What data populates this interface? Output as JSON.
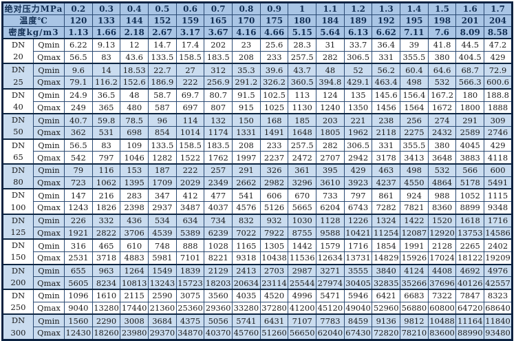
{
  "labels": {
    "dn": "DN",
    "qmin": "Qmin",
    "qmax": "Qmax"
  },
  "header_rows": [
    {
      "label": "绝对压力MPa",
      "values": [
        "0.2",
        "0.3",
        "0.4",
        "0.5",
        "0.6",
        "0.7",
        "0.8",
        "0.9",
        "1",
        "1.1",
        "1.2",
        "1.3",
        "1.4",
        "1.5",
        "1.6",
        "1.7"
      ]
    },
    {
      "label": "温度℃",
      "values": [
        "120",
        "133",
        "144",
        "152",
        "159",
        "165",
        "170",
        "175",
        "180",
        "184",
        "189",
        "192",
        "195",
        "198",
        "201",
        "204"
      ]
    },
    {
      "label": "密度kg/m3",
      "values": [
        "1.13",
        "1.66",
        "2.18",
        "2.67",
        "3.17",
        "3.67",
        "4.16",
        "4.66",
        "5.15",
        "5.64",
        "6.13",
        "6.62",
        "7.11",
        "7.6",
        "8.09",
        "8.58"
      ]
    }
  ],
  "row_groups": [
    {
      "dn": "20",
      "shaded": false,
      "qmin": [
        "6.22",
        "9.13",
        "12",
        "14.7",
        "17.4",
        "202",
        "23",
        "25.6",
        "28.3",
        "31",
        "33.7",
        "36.4",
        "39",
        "41.8",
        "44.5",
        "47.2"
      ],
      "qmax": [
        "56.5",
        "83",
        "43.6",
        "133.5",
        "158.5",
        "183.5",
        "208",
        "233",
        "257.5",
        "282",
        "306.5",
        "331",
        "355.5",
        "380",
        "404.5",
        "429"
      ]
    },
    {
      "dn": "25",
      "shaded": true,
      "qmin": [
        "9.6",
        "14",
        "18.53",
        "22.7",
        "27",
        "312",
        "35.3",
        "39.6",
        "43.7",
        "48",
        "52",
        "56.2",
        "60.4",
        "64.6",
        "68.7",
        "72.9"
      ],
      "qmax": [
        "79.1",
        "116.2",
        "152.6",
        "186.9",
        "222",
        "256.9",
        "291.2",
        "326.2",
        "360.5",
        "394.8",
        "429.1",
        "463.4",
        "498",
        "532",
        "566.3",
        "600.6"
      ]
    },
    {
      "dn": "40",
      "shaded": false,
      "qmin": [
        "24.9",
        "36.5",
        "48",
        "58.7",
        "69.7",
        "80.7",
        "91.5",
        "102.5",
        "113",
        "124",
        "135",
        "145.6",
        "156.4",
        "167.2",
        "180",
        "188.8"
      ],
      "qmax": [
        "249",
        "365",
        "480",
        "587",
        "697",
        "807",
        "915",
        "1025",
        "1130",
        "1240",
        "1350",
        "1456",
        "1564",
        "1672",
        "1800",
        "1888"
      ]
    },
    {
      "dn": "50",
      "shaded": true,
      "qmin": [
        "40.7",
        "59.8",
        "78.5",
        "96",
        "114",
        "132",
        "150",
        "168",
        "185",
        "203",
        "221",
        "238",
        "256",
        "274",
        "291",
        "309"
      ],
      "qmax": [
        "362",
        "531",
        "698",
        "854",
        "1014",
        "1174",
        "1331",
        "1491",
        "1648",
        "1805",
        "1962",
        "2118",
        "2275",
        "2432",
        "2589",
        "2746"
      ]
    },
    {
      "dn": "65",
      "shaded": false,
      "qmin": [
        "56.5",
        "83",
        "109",
        "133.5",
        "158.5",
        "183.5",
        "208",
        "233",
        "257.5",
        "282",
        "306.5",
        "331",
        "355.5",
        "380",
        "4045",
        "429"
      ],
      "qmax": [
        "542",
        "797",
        "1046",
        "1282",
        "1522",
        "1762",
        "1997",
        "2237",
        "2472",
        "2707",
        "2942",
        "3178",
        "3413",
        "3648",
        "3883",
        "4118"
      ]
    },
    {
      "dn": "80",
      "shaded": true,
      "qmin": [
        "79",
        "116",
        "153",
        "187",
        "222",
        "257",
        "291",
        "326",
        "361",
        "395",
        "429",
        "463",
        "498",
        "532",
        "566",
        "600"
      ],
      "qmax": [
        "723",
        "1062",
        "1395",
        "1709",
        "2029",
        "2349",
        "2662",
        "2982",
        "3296",
        "3610",
        "3923",
        "4237",
        "4550",
        "4864",
        "5178",
        "5491"
      ]
    },
    {
      "dn": "100",
      "shaded": false,
      "qmin": [
        "147",
        "216",
        "283",
        "347",
        "412",
        "477",
        "541",
        "606",
        "670",
        "733",
        "797",
        "861",
        "924",
        "988",
        "1052",
        "1115"
      ],
      "qmax": [
        "1243",
        "1826",
        "2398",
        "2937",
        "3487",
        "4037",
        "4576",
        "5126",
        "5665",
        "6204",
        "6743",
        "7282",
        "7821",
        "8360",
        "8899",
        "9348"
      ]
    },
    {
      "dn": "125",
      "shaded": true,
      "qmin": [
        "226",
        "332",
        "436",
        "534",
        "634",
        "734",
        "832",
        "932",
        "1030",
        "1128",
        "1226",
        "1324",
        "1422",
        "1520",
        "1618",
        "1716"
      ],
      "qmax": [
        "1921",
        "2822",
        "3706",
        "4539",
        "5389",
        "6239",
        "7022",
        "7922",
        "8755",
        "9588",
        "10421",
        "11254",
        "12087",
        "12920",
        "13753",
        "14586"
      ]
    },
    {
      "dn": "150",
      "shaded": false,
      "qmin": [
        "316",
        "465",
        "610",
        "748",
        "888",
        "1028",
        "1165",
        "1305",
        "1442",
        "1579",
        "1716",
        "1854",
        "1991",
        "2128",
        "2265",
        "2402"
      ],
      "qmax": [
        "2531",
        "3718",
        "4883",
        "5981",
        "7101",
        "8221",
        "9318",
        "10438",
        "11536",
        "12634",
        "13731",
        "14829",
        "15926",
        "17024",
        "18122",
        "19209"
      ]
    },
    {
      "dn": "200",
      "shaded": true,
      "qmin": [
        "655",
        "963",
        "1264",
        "1549",
        "1839",
        "2129",
        "2413",
        "2703",
        "2987",
        "3271",
        "3555",
        "3840",
        "4124",
        "4408",
        "4692",
        "4976"
      ],
      "qmax": [
        "5605",
        "8234",
        "10813",
        "13243",
        "15723",
        "18203",
        "20634",
        "23114",
        "25544",
        "27974",
        "30405",
        "32835",
        "35266",
        "37696",
        "40126",
        "42557"
      ]
    },
    {
      "dn": "250",
      "shaded": false,
      "qmin": [
        "1096",
        "1610",
        "2115",
        "2590",
        "3075",
        "3560",
        "4035",
        "4520",
        "4996",
        "5471",
        "5946",
        "6421",
        "6683",
        "7322",
        "7847",
        "8323"
      ],
      "qmax": [
        "9040",
        "13280",
        "17440",
        "21360",
        "25360",
        "29360",
        "33280",
        "37280",
        "41200",
        "45120",
        "49040",
        "52960",
        "56880",
        "60800",
        "64720",
        "68640"
      ]
    },
    {
      "dn": "300",
      "shaded": true,
      "qmin": [
        "1560",
        "2290",
        "3008",
        "3684",
        "4375",
        "5056",
        "5741",
        "6431",
        "7107",
        "7783",
        "8459",
        "9136",
        "9812",
        "10488",
        "11164",
        "11840"
      ],
      "qmax": [
        "12430",
        "18260",
        "23980",
        "29370",
        "34870",
        "40370",
        "45760",
        "51260",
        "56650",
        "62040",
        "67430",
        "72820",
        "78210",
        "83600",
        "88990",
        "93480"
      ]
    }
  ],
  "colors": {
    "header_bg": "#a9c5e5",
    "shaded_row_bg": "#cadcef",
    "plain_row_bg": "#ffffff",
    "grid_border": "#2a4a74",
    "outer_border": "#0a2140",
    "header_text": "#122f54",
    "cell_text": "#1a1a1a"
  }
}
